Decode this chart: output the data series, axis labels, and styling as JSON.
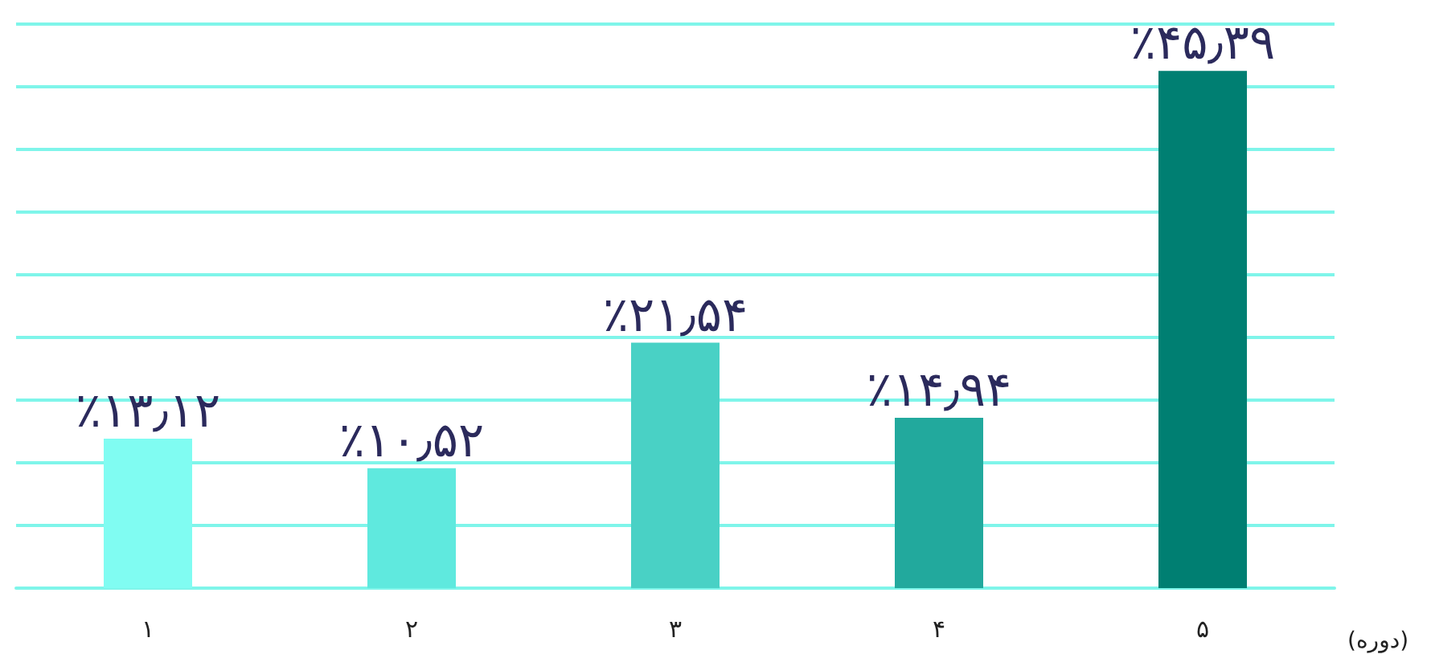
{
  "chart_data": {
    "type": "bar",
    "xlabel": "(دوره)",
    "categories": [
      "۱",
      "۲",
      "۳",
      "۴",
      "۵"
    ],
    "values": [
      13.12,
      10.52,
      21.54,
      14.94,
      45.39
    ],
    "colors": [
      "#80fcf2",
      "#5fe9de",
      "#49d1c5",
      "#22a99d",
      "#007f72"
    ],
    "value_labels": [
      "٪۱۳٫۱۲",
      "٪۱۰٫۵۲",
      "٪۲۱٫۵۴",
      "٪۱۴٫۹۴",
      "٪۴۵٫۳۹"
    ],
    "ylim": [
      0,
      49.5
    ],
    "yticks": [
      {
        "value": 0,
        "label": null
      },
      {
        "value": 5.5,
        "label": null
      },
      {
        "value": 11,
        "label": null
      },
      {
        "value": 16.5,
        "label": null
      },
      {
        "value": 22,
        "label": null
      },
      {
        "value": 27.5,
        "label": null
      },
      {
        "value": 33,
        "label": null
      },
      {
        "value": 38.5,
        "label": null
      },
      {
        "value": 44,
        "label": null
      },
      {
        "value": 49.5,
        "label": null
      }
    ],
    "grid": "y",
    "tick_labels": "x"
  }
}
